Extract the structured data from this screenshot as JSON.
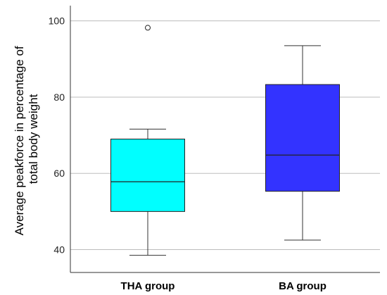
{
  "chart_data": {
    "type": "boxplot",
    "categories": [
      "THA group",
      "BA group"
    ],
    "boxes": [
      {
        "category": "THA group",
        "whisker_low": 38.5,
        "q1": 50.0,
        "median": 57.8,
        "q3": 69.0,
        "whisker_high": 71.6,
        "outliers": [
          98.2
        ],
        "color": "#00ffff"
      },
      {
        "category": "BA group",
        "whisker_low": 42.5,
        "q1": 55.3,
        "median": 64.8,
        "q3": 83.3,
        "whisker_high": 93.5,
        "outliers": [],
        "color": "#3333ff"
      }
    ],
    "ylabel_lines": [
      "Average peakforce in percentage of",
      "total body weight"
    ],
    "yticks": [
      40,
      60,
      80,
      100
    ],
    "ylim": [
      34,
      104
    ],
    "grid": "horizontal",
    "legend": "none"
  }
}
